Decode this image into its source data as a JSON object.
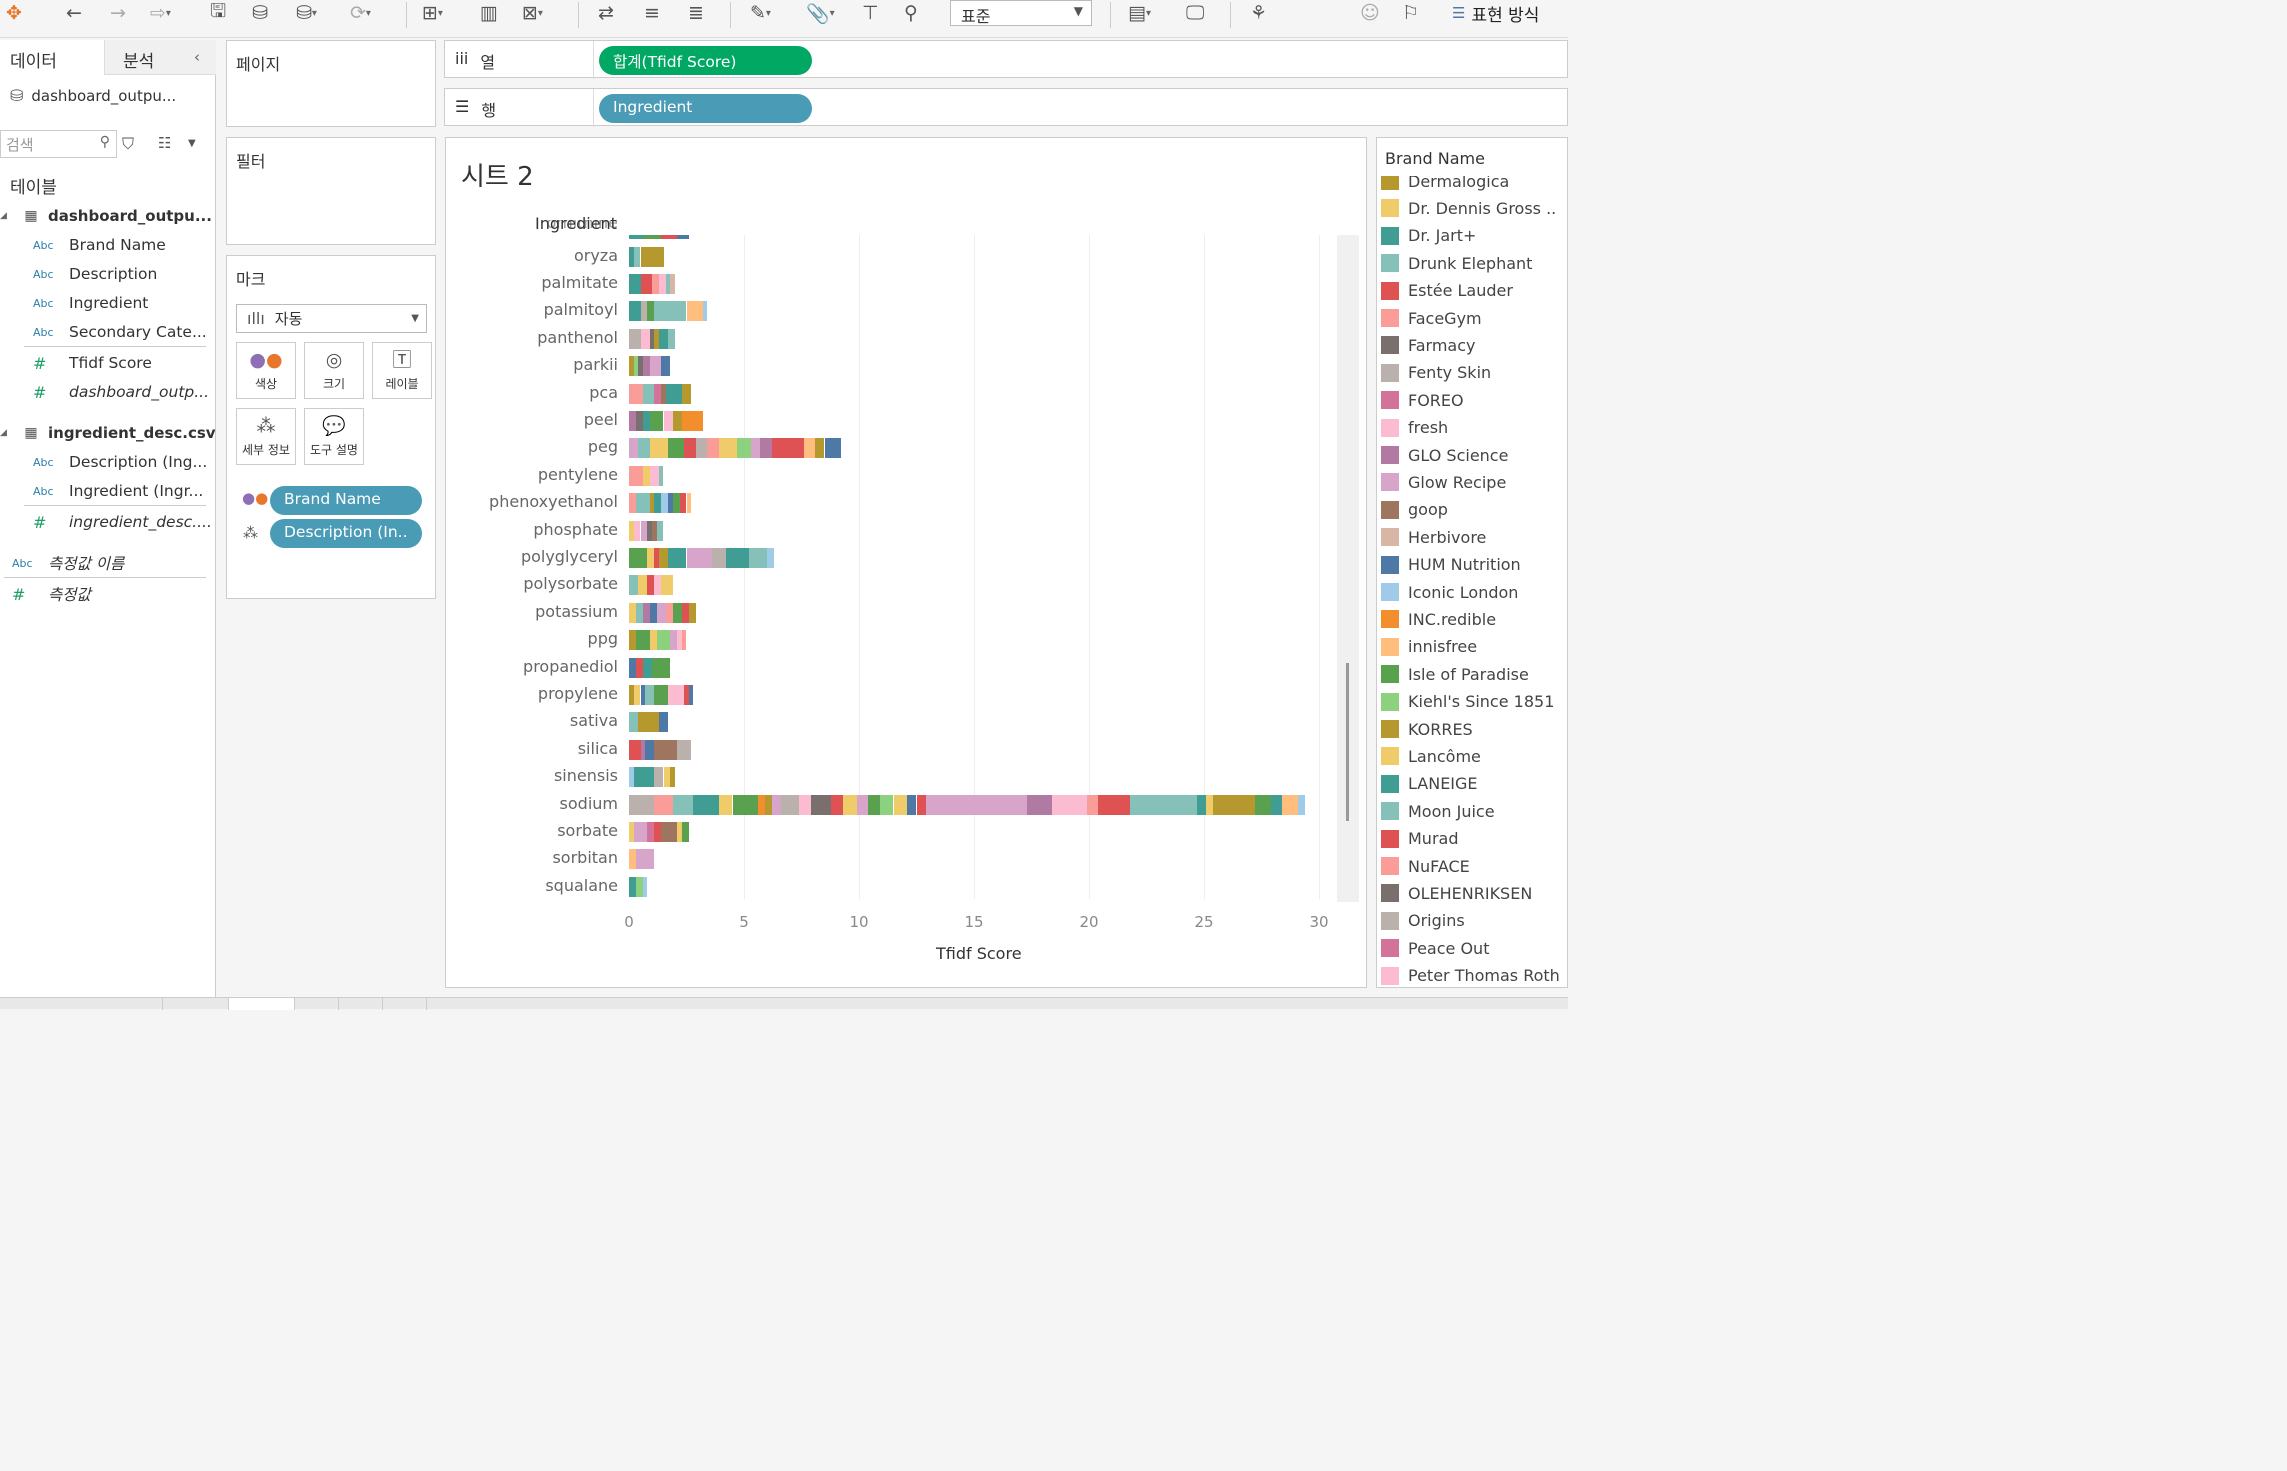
{
  "toolbar": {
    "standard_select": "표준",
    "show_me_label": "표현 방식"
  },
  "data_pane": {
    "tab_data": "데이터",
    "tab_analysis": "분석",
    "datasource": "dashboard_outpu...",
    "search_placeholder": "검색",
    "tables_heading": "테이블",
    "tables": [
      {
        "name": "dashboard_outpu...",
        "fields": [
          {
            "type": "Abc",
            "name": "Brand Name"
          },
          {
            "type": "Abc",
            "name": "Description"
          },
          {
            "type": "Abc",
            "name": "Ingredient"
          },
          {
            "type": "Abc",
            "name": "Secondary Cate..."
          },
          {
            "type": "#",
            "name": "Tfidf Score"
          },
          {
            "type": "#",
            "name": "dashboard_outp..."
          }
        ]
      },
      {
        "name": "ingredient_desc.csv",
        "fields": [
          {
            "type": "Abc",
            "name": "Description (Ing..."
          },
          {
            "type": "Abc",
            "name": "Ingredient (Ingr..."
          },
          {
            "type": "#",
            "name": "ingredient_desc...."
          }
        ]
      }
    ],
    "measure_names": "측정값 이름",
    "measure_values": "측정값"
  },
  "cards": {
    "pages_title": "페이지",
    "filters_title": "필터",
    "marks_title": "마크",
    "marks_type": "자동",
    "mark_buttons": [
      "색상",
      "크기",
      "레이블",
      "세부 정보",
      "도구 설명"
    ],
    "marks_pills": [
      "Brand Name",
      "Description (In.."
    ]
  },
  "shelves": {
    "columns_label": "열",
    "columns_pill": "합계(Tfidf Score)",
    "rows_label": "행",
    "rows_pill": "Ingredient"
  },
  "sheet": {
    "title": "시트 2",
    "row_header": "Ingredient",
    "top_partial_label": "ornithine"
  },
  "chart_data": {
    "type": "bar",
    "orientation": "horizontal",
    "stacked": true,
    "stacked_by": "Brand Name",
    "xlabel": "Tfidf Score",
    "xlim": [
      0,
      30
    ],
    "xticks": [
      0,
      5,
      10,
      15,
      20,
      25,
      30
    ],
    "categories": [
      "oryza",
      "palmitate",
      "palmitoyl",
      "panthenol",
      "parkii",
      "pca",
      "peel",
      "peg",
      "pentylene",
      "phenoxyethanol",
      "phosphate",
      "polyglyceryl",
      "polysorbate",
      "potassium",
      "ppg",
      "propanediol",
      "propylene",
      "sativa",
      "silica",
      "sinensis",
      "sodium",
      "sorbate",
      "sorbitan",
      "squalane"
    ],
    "totals": [
      1.5,
      2.0,
      3.4,
      2.0,
      1.8,
      2.7,
      3.2,
      9.2,
      1.5,
      2.7,
      1.5,
      6.3,
      1.9,
      2.9,
      2.5,
      1.8,
      2.8,
      1.7,
      2.7,
      2.0,
      29.4,
      2.6,
      1.1,
      0.8
    ],
    "palette": [
      "#b5982e",
      "#f0cb6a",
      "#3f9d94",
      "#86c1b9",
      "#df5253",
      "#fa9d99",
      "#79706e",
      "#bab0ac",
      "#d47399",
      "#fbbcd2",
      "#b07aa2",
      "#d6a5c9",
      "#9e765f",
      "#d8b5a5",
      "#4e79a7",
      "#a0cbe8",
      "#f28e2b",
      "#ffbe7d",
      "#59a14f",
      "#8cd17d"
    ],
    "segments": [
      [
        [
          0,
          0.2,
          2
        ],
        [
          0.2,
          0.5,
          3
        ],
        [
          0.5,
          1.5,
          0
        ]
      ],
      [
        [
          0,
          0.5,
          2
        ],
        [
          0.5,
          1.0,
          4
        ],
        [
          1.0,
          1.3,
          5
        ],
        [
          1.3,
          1.6,
          9
        ],
        [
          1.6,
          1.8,
          3
        ],
        [
          1.8,
          2.0,
          13
        ]
      ],
      [
        [
          0,
          0.5,
          2
        ],
        [
          0.5,
          0.8,
          7
        ],
        [
          0.8,
          1.1,
          18
        ],
        [
          1.1,
          2.5,
          3
        ],
        [
          2.5,
          3.2,
          17
        ],
        [
          3.2,
          3.4,
          15
        ]
      ],
      [
        [
          0,
          0.5,
          7
        ],
        [
          0.5,
          0.9,
          9
        ],
        [
          0.9,
          1.1,
          6
        ],
        [
          1.1,
          1.3,
          0
        ],
        [
          1.3,
          1.7,
          2
        ],
        [
          1.7,
          2.0,
          3
        ]
      ],
      [
        [
          0,
          0.2,
          0
        ],
        [
          0.2,
          0.4,
          19
        ],
        [
          0.4,
          0.6,
          6
        ],
        [
          0.6,
          0.9,
          10
        ],
        [
          0.9,
          1.4,
          11
        ],
        [
          1.4,
          1.8,
          14
        ]
      ],
      [
        [
          0,
          0.6,
          5
        ],
        [
          0.6,
          1.1,
          3
        ],
        [
          1.1,
          1.4,
          8
        ],
        [
          1.4,
          1.6,
          12
        ],
        [
          1.6,
          2.3,
          2
        ],
        [
          2.3,
          2.7,
          0
        ]
      ],
      [
        [
          0,
          0.3,
          10
        ],
        [
          0.3,
          0.6,
          6
        ],
        [
          0.6,
          0.9,
          2
        ],
        [
          0.9,
          1.5,
          18
        ],
        [
          1.5,
          1.9,
          9
        ],
        [
          1.9,
          2.3,
          0
        ],
        [
          2.3,
          3.2,
          16
        ]
      ],
      [
        [
          0,
          0.4,
          11
        ],
        [
          0.4,
          0.9,
          3
        ],
        [
          0.9,
          1.7,
          1
        ],
        [
          1.7,
          2.4,
          18
        ],
        [
          2.4,
          2.9,
          4
        ],
        [
          2.9,
          3.4,
          7
        ],
        [
          3.4,
          3.9,
          5
        ],
        [
          3.9,
          4.7,
          1
        ],
        [
          4.7,
          5.3,
          19
        ],
        [
          5.3,
          5.7,
          11
        ],
        [
          5.7,
          6.2,
          10
        ],
        [
          6.2,
          7.6,
          4
        ],
        [
          7.6,
          8.1,
          17
        ],
        [
          8.1,
          8.5,
          0
        ],
        [
          8.5,
          9.2,
          14
        ]
      ],
      [
        [
          0,
          0.6,
          5
        ],
        [
          0.6,
          0.9,
          1
        ],
        [
          0.9,
          1.3,
          9
        ],
        [
          1.3,
          1.5,
          3
        ]
      ],
      [
        [
          0,
          0.3,
          5
        ],
        [
          0.3,
          0.9,
          3
        ],
        [
          0.9,
          1.1,
          0
        ],
        [
          1.1,
          1.4,
          2
        ],
        [
          1.4,
          1.7,
          15
        ],
        [
          1.7,
          1.9,
          14
        ],
        [
          1.9,
          2.2,
          18
        ],
        [
          2.2,
          2.5,
          4
        ],
        [
          2.5,
          2.7,
          17
        ]
      ],
      [
        [
          0,
          0.2,
          1
        ],
        [
          0.2,
          0.5,
          9
        ],
        [
          0.5,
          0.8,
          11
        ],
        [
          0.8,
          1.0,
          6
        ],
        [
          1.0,
          1.2,
          12
        ],
        [
          1.2,
          1.5,
          3
        ]
      ],
      [
        [
          0,
          0.8,
          18
        ],
        [
          0.8,
          1.1,
          1
        ],
        [
          1.1,
          1.3,
          4
        ],
        [
          1.3,
          1.7,
          0
        ],
        [
          1.7,
          2.5,
          2
        ],
        [
          2.5,
          3.6,
          11
        ],
        [
          3.6,
          4.2,
          7
        ],
        [
          4.2,
          5.2,
          2
        ],
        [
          5.2,
          6.0,
          3
        ],
        [
          6.0,
          6.3,
          15
        ]
      ],
      [
        [
          0,
          0.4,
          3
        ],
        [
          0.4,
          0.8,
          1
        ],
        [
          0.8,
          1.1,
          4
        ],
        [
          1.1,
          1.4,
          9
        ],
        [
          1.4,
          1.9,
          1
        ]
      ],
      [
        [
          0,
          0.3,
          1
        ],
        [
          0.3,
          0.6,
          3
        ],
        [
          0.6,
          0.9,
          10
        ],
        [
          0.9,
          1.2,
          14
        ],
        [
          1.2,
          1.6,
          11
        ],
        [
          1.6,
          1.9,
          5
        ],
        [
          1.9,
          2.3,
          18
        ],
        [
          2.3,
          2.6,
          4
        ],
        [
          2.6,
          2.9,
          0
        ]
      ],
      [
        [
          0,
          0.3,
          0
        ],
        [
          0.3,
          0.9,
          18
        ],
        [
          0.9,
          1.2,
          1
        ],
        [
          1.2,
          1.8,
          19
        ],
        [
          1.8,
          2.1,
          11
        ],
        [
          2.1,
          2.3,
          9
        ],
        [
          2.3,
          2.5,
          5
        ]
      ],
      [
        [
          0,
          0.3,
          14
        ],
        [
          0.3,
          0.6,
          4
        ],
        [
          0.6,
          1.0,
          2
        ],
        [
          1.0,
          1.8,
          18
        ]
      ],
      [
        [
          0,
          0.2,
          0
        ],
        [
          0.2,
          0.5,
          1
        ],
        [
          0.5,
          0.7,
          14
        ],
        [
          0.7,
          1.1,
          3
        ],
        [
          1.1,
          1.7,
          18
        ],
        [
          1.7,
          2.4,
          9
        ],
        [
          2.4,
          2.6,
          4
        ],
        [
          2.6,
          2.8,
          14
        ]
      ],
      [
        [
          0,
          0.4,
          3
        ],
        [
          0.4,
          1.3,
          0
        ],
        [
          1.3,
          1.7,
          14
        ]
      ],
      [
        [
          0,
          0.5,
          4
        ],
        [
          0.5,
          0.7,
          10
        ],
        [
          0.7,
          1.1,
          14
        ],
        [
          1.1,
          2.1,
          12
        ],
        [
          2.1,
          2.7,
          7
        ]
      ],
      [
        [
          0,
          0.2,
          15
        ],
        [
          0.2,
          1.1,
          2
        ],
        [
          1.1,
          1.5,
          7
        ],
        [
          1.5,
          1.8,
          1
        ],
        [
          1.8,
          2.0,
          0
        ]
      ],
      [
        [
          0,
          1.1,
          7
        ],
        [
          1.1,
          1.9,
          5
        ],
        [
          1.9,
          2.8,
          3
        ],
        [
          2.8,
          3.9,
          2
        ],
        [
          3.9,
          4.5,
          1
        ],
        [
          4.5,
          5.6,
          18
        ],
        [
          5.6,
          5.9,
          16
        ],
        [
          5.9,
          6.2,
          0
        ],
        [
          6.2,
          6.6,
          11
        ],
        [
          6.6,
          7.4,
          7
        ],
        [
          7.4,
          7.9,
          9
        ],
        [
          7.9,
          8.8,
          6
        ],
        [
          8.8,
          9.3,
          4
        ],
        [
          9.3,
          9.9,
          1
        ],
        [
          9.9,
          10.4,
          11
        ],
        [
          10.4,
          10.9,
          18
        ],
        [
          10.9,
          11.5,
          19
        ],
        [
          11.5,
          12.1,
          1
        ],
        [
          12.1,
          12.5,
          14
        ],
        [
          12.5,
          12.9,
          4
        ],
        [
          12.9,
          17.3,
          11
        ],
        [
          17.3,
          18.4,
          10
        ],
        [
          18.4,
          19.9,
          9
        ],
        [
          19.9,
          20.4,
          5
        ],
        [
          20.4,
          21.8,
          4
        ],
        [
          21.8,
          24.7,
          3
        ],
        [
          24.7,
          25.1,
          2
        ],
        [
          25.1,
          25.4,
          1
        ],
        [
          25.4,
          27.2,
          0
        ],
        [
          27.2,
          27.9,
          18
        ],
        [
          27.9,
          28.4,
          2
        ],
        [
          28.4,
          29.1,
          17
        ],
        [
          29.1,
          29.4,
          15
        ]
      ],
      [
        [
          0,
          0.2,
          1
        ],
        [
          0.2,
          0.8,
          11
        ],
        [
          0.8,
          1.1,
          8
        ],
        [
          1.1,
          1.4,
          4
        ],
        [
          1.4,
          2.1,
          12
        ],
        [
          2.1,
          2.3,
          1
        ],
        [
          2.3,
          2.6,
          18
        ]
      ],
      [
        [
          0,
          0.3,
          17
        ],
        [
          0.3,
          1.1,
          11
        ]
      ],
      [
        [
          0,
          0.3,
          2
        ],
        [
          0.3,
          0.6,
          19
        ],
        [
          0.6,
          0.8,
          15
        ]
      ]
    ]
  },
  "legend": {
    "title": "Brand Name",
    "items": [
      {
        "name": "Dermalogica",
        "color": "#b5982e"
      },
      {
        "name": "Dr. Dennis Gross ..",
        "color": "#f0cb6a"
      },
      {
        "name": "Dr. Jart+",
        "color": "#3f9d94"
      },
      {
        "name": "Drunk Elephant",
        "color": "#86c1b9"
      },
      {
        "name": "Estée Lauder",
        "color": "#df5253"
      },
      {
        "name": "FaceGym",
        "color": "#fa9d99"
      },
      {
        "name": "Farmacy",
        "color": "#79706e"
      },
      {
        "name": "Fenty Skin",
        "color": "#bab0ac"
      },
      {
        "name": "FOREO",
        "color": "#d47399"
      },
      {
        "name": "fresh",
        "color": "#fbbcd2"
      },
      {
        "name": "GLO Science",
        "color": "#b07aa2"
      },
      {
        "name": "Glow Recipe",
        "color": "#d6a5c9"
      },
      {
        "name": "goop",
        "color": "#9e765f"
      },
      {
        "name": "Herbivore",
        "color": "#d8b5a5"
      },
      {
        "name": "HUM Nutrition",
        "color": "#4e79a7"
      },
      {
        "name": "Iconic London",
        "color": "#a0cbe8"
      },
      {
        "name": "INC.redible",
        "color": "#f28e2b"
      },
      {
        "name": "innisfree",
        "color": "#ffbe7d"
      },
      {
        "name": "Isle of Paradise",
        "color": "#59a14f"
      },
      {
        "name": "Kiehl's Since 1851",
        "color": "#8cd17d"
      },
      {
        "name": "KORRES",
        "color": "#b5982e"
      },
      {
        "name": "Lancôme",
        "color": "#f0cb6a"
      },
      {
        "name": "LANEIGE",
        "color": "#3f9d94"
      },
      {
        "name": "Moon Juice",
        "color": "#86c1b9"
      },
      {
        "name": "Murad",
        "color": "#df5253"
      },
      {
        "name": "NuFACE",
        "color": "#fa9d99"
      },
      {
        "name": "OLEHENRIKSEN",
        "color": "#79706e"
      },
      {
        "name": "Origins",
        "color": "#bab0ac"
      },
      {
        "name": "Peace Out",
        "color": "#d47399"
      },
      {
        "name": "Peter Thomas Roth",
        "color": "#fbbcd2"
      }
    ]
  }
}
